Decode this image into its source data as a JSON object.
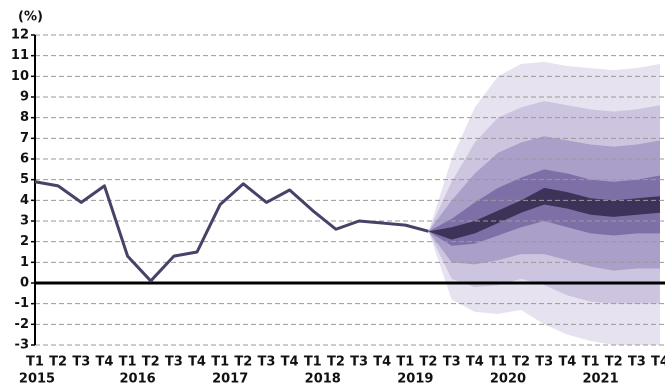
{
  "chart_data": {
    "type": "fan",
    "y_unit": "(%)",
    "categories": [
      "T1",
      "T2",
      "T3",
      "T4",
      "T1",
      "T2",
      "T3",
      "T4",
      "T1",
      "T2",
      "T3",
      "T4",
      "T1",
      "T2",
      "T3",
      "T4",
      "T1",
      "T2",
      "T3",
      "T4",
      "T1",
      "T2",
      "T3",
      "T4",
      "T1",
      "T2",
      "T3",
      "T4"
    ],
    "years": [
      "2015",
      "2016",
      "2017",
      "2018",
      "2019",
      "2020",
      "2021"
    ],
    "series": [
      {
        "color": "#4a4068",
        "values": [
          4.9,
          4.7,
          3.9,
          4.7,
          1.3,
          0.1,
          1.3,
          1.5,
          3.8,
          4.8,
          3.9,
          4.5,
          3.5,
          2.6,
          3.0,
          2.9,
          2.8,
          2.5,
          null,
          null,
          null,
          null,
          null,
          null,
          null,
          null,
          null,
          null
        ]
      }
    ],
    "fan": [
      {
        "color": "#e6e2ef",
        "upper": [
          null,
          null,
          null,
          null,
          null,
          null,
          null,
          null,
          null,
          null,
          null,
          null,
          null,
          null,
          null,
          null,
          null,
          2.5,
          6.0,
          8.5,
          10.0,
          10.6,
          10.7,
          10.5,
          10.4,
          10.3,
          10.4,
          10.6
        ],
        "lower": [
          null,
          null,
          null,
          null,
          null,
          null,
          null,
          null,
          null,
          null,
          null,
          null,
          null,
          null,
          null,
          null,
          null,
          2.5,
          -0.8,
          -1.4,
          -1.5,
          -1.3,
          -2.0,
          -2.5,
          -2.8,
          -3.0,
          -3.0,
          -3.0
        ]
      },
      {
        "color": "#cdc5e0",
        "upper": [
          null,
          null,
          null,
          null,
          null,
          null,
          null,
          null,
          null,
          null,
          null,
          null,
          null,
          null,
          null,
          null,
          null,
          2.5,
          4.9,
          6.8,
          8.0,
          8.5,
          8.8,
          8.6,
          8.4,
          8.3,
          8.4,
          8.6
        ],
        "lower": [
          null,
          null,
          null,
          null,
          null,
          null,
          null,
          null,
          null,
          null,
          null,
          null,
          null,
          null,
          null,
          null,
          null,
          2.5,
          0.2,
          -0.2,
          -0.1,
          0.2,
          -0.1,
          -0.6,
          -0.9,
          -1.0,
          -1.0,
          -1.0
        ]
      },
      {
        "color": "#aa9fc8",
        "upper": [
          null,
          null,
          null,
          null,
          null,
          null,
          null,
          null,
          null,
          null,
          null,
          null,
          null,
          null,
          null,
          null,
          null,
          2.5,
          4.0,
          5.3,
          6.3,
          6.8,
          7.1,
          6.9,
          6.7,
          6.6,
          6.7,
          6.9
        ],
        "lower": [
          null,
          null,
          null,
          null,
          null,
          null,
          null,
          null,
          null,
          null,
          null,
          null,
          null,
          null,
          null,
          null,
          null,
          2.5,
          1.0,
          0.9,
          1.1,
          1.4,
          1.4,
          1.1,
          0.8,
          0.6,
          0.7,
          0.7
        ]
      },
      {
        "color": "#7e70a6",
        "upper": [
          null,
          null,
          null,
          null,
          null,
          null,
          null,
          null,
          null,
          null,
          null,
          null,
          null,
          null,
          null,
          null,
          null,
          2.5,
          3.1,
          3.9,
          4.6,
          5.1,
          5.5,
          5.3,
          5.0,
          4.9,
          5.0,
          5.2
        ],
        "lower": [
          null,
          null,
          null,
          null,
          null,
          null,
          null,
          null,
          null,
          null,
          null,
          null,
          null,
          null,
          null,
          null,
          null,
          2.5,
          1.8,
          1.9,
          2.3,
          2.7,
          3.0,
          2.7,
          2.4,
          2.3,
          2.4,
          2.4
        ]
      },
      {
        "color": "#3d3258",
        "upper": [
          null,
          null,
          null,
          null,
          null,
          null,
          null,
          null,
          null,
          null,
          null,
          null,
          null,
          null,
          null,
          null,
          null,
          2.5,
          2.7,
          3.0,
          3.5,
          4.0,
          4.6,
          4.4,
          4.1,
          4.0,
          4.1,
          4.2
        ],
        "lower": [
          null,
          null,
          null,
          null,
          null,
          null,
          null,
          null,
          null,
          null,
          null,
          null,
          null,
          null,
          null,
          null,
          null,
          2.5,
          2.1,
          2.4,
          2.9,
          3.4,
          3.8,
          3.6,
          3.3,
          3.2,
          3.3,
          3.4
        ]
      }
    ],
    "ylim": [
      -3,
      12
    ],
    "yticks": [
      -3,
      -2,
      -1,
      0,
      1,
      2,
      3,
      4,
      5,
      6,
      7,
      8,
      9,
      10,
      11,
      12
    ],
    "grid": true
  }
}
